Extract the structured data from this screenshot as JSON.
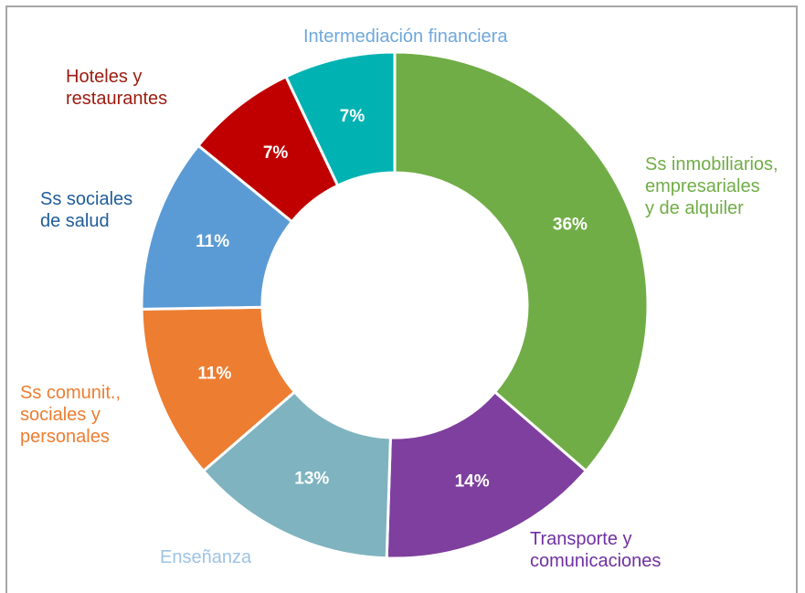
{
  "chart_data": {
    "type": "donut",
    "categories": [
      "Ss inmobiliarios,\nempresariales\ny de alquiler",
      "Transporte y\ncomunicaciones",
      "Enseñanza",
      "Ss comunit.,\nsociales y\npersonales",
      "Ss sociales\nde salud",
      "Hoteles y\nrestaurantes",
      "Intermediación financiera"
    ],
    "values": [
      36,
      14,
      13,
      11,
      11,
      7,
      7
    ],
    "value_labels": [
      "36%",
      "14%",
      "13%",
      "11%",
      "11%",
      "7%",
      "7%"
    ],
    "colors": [
      "#70ad47",
      "#7e3f9e",
      "#7fb3c0",
      "#ed7d31",
      "#5b9bd5",
      "#c00000",
      "#00b2b2"
    ],
    "label_colors": [
      "#70ad47",
      "#7030a0",
      "#9dc3e6",
      "#ed7d31",
      "#1f5c99",
      "#9b1c0f",
      "#6fa8dc"
    ]
  }
}
